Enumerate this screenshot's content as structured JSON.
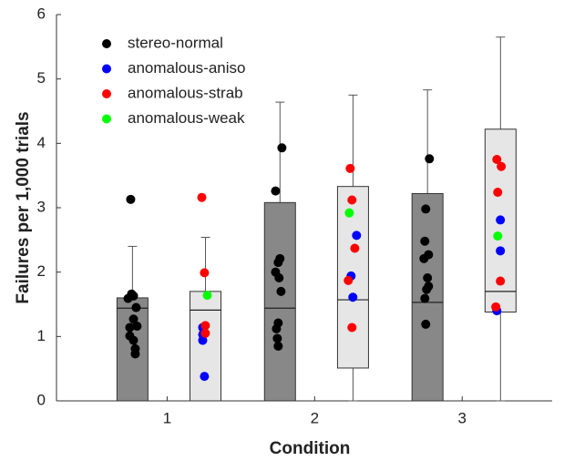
{
  "chart_data": {
    "type": "box-scatter",
    "xlabel": "Condition",
    "ylabel": "Failures per 1,000 trials",
    "xlim": [
      0.25,
      3.61
    ],
    "xticks": [
      1,
      2,
      3
    ],
    "ylim": [
      0,
      6
    ],
    "yticks": [
      0,
      1,
      2,
      3,
      4,
      5,
      6
    ],
    "legend": "upper-left",
    "boxes": [
      {
        "x": 0.765,
        "low": 0,
        "q1": 0,
        "median": 1.44,
        "q3": 1.6,
        "high": 2.4,
        "color": "#888888"
      },
      {
        "x": 1.26,
        "low": 0,
        "q1": 0,
        "median": 1.41,
        "q3": 1.7,
        "high": 2.54,
        "color": "#e6e6e6"
      },
      {
        "x": 1.765,
        "low": 0,
        "q1": 0,
        "median": 1.44,
        "q3": 3.08,
        "high": 4.64,
        "color": "#888888"
      },
      {
        "x": 2.26,
        "low": 0,
        "q1": 0.51,
        "median": 1.57,
        "q3": 3.33,
        "high": 4.75,
        "color": "#e6e6e6"
      },
      {
        "x": 2.765,
        "low": 0,
        "q1": 0,
        "median": 1.53,
        "q3": 3.22,
        "high": 4.83,
        "color": "#888888"
      },
      {
        "x": 3.26,
        "low": 0,
        "q1": 1.38,
        "median": 1.7,
        "q3": 4.22,
        "high": 5.65,
        "color": "#e6e6e6"
      }
    ],
    "series": [
      {
        "name": "stereo-normal",
        "color": "#000000",
        "x": [
          0.753,
          0.759,
          0.772,
          0.735,
          0.79,
          0.772,
          0.796,
          0.747,
          0.747,
          0.772,
          0.784,
          0.784,
          1.778,
          1.735,
          1.765,
          1.753,
          1.735,
          1.759,
          1.772,
          1.753,
          1.741,
          1.747,
          1.753,
          2.778,
          2.753,
          2.747,
          2.772,
          2.741,
          2.765,
          2.772,
          2.759,
          2.747,
          2.753
        ],
        "values": [
          3.13,
          1.66,
          1.63,
          1.59,
          1.45,
          1.27,
          1.16,
          1.14,
          1.01,
          0.94,
          0.81,
          0.73,
          3.93,
          3.26,
          2.21,
          2.15,
          2.0,
          1.91,
          1.7,
          1.21,
          1.12,
          0.97,
          0.85,
          3.76,
          2.98,
          2.48,
          2.27,
          2.21,
          1.91,
          1.78,
          1.73,
          1.59,
          1.19
        ]
      },
      {
        "name": "anomalous-aniso",
        "color": "#0000ff",
        "x": [
          1.241,
          1.241,
          1.241,
          1.253,
          2.284,
          2.247,
          2.259,
          3.259,
          3.259,
          3.235
        ],
        "values": [
          1.14,
          1.03,
          0.94,
          0.38,
          2.57,
          1.94,
          1.61,
          2.81,
          2.33,
          1.4
        ]
      },
      {
        "name": "anomalous-strab",
        "color": "#ff0000",
        "x": [
          1.235,
          1.253,
          1.259,
          1.259,
          2.241,
          2.253,
          2.272,
          2.228,
          2.253,
          3.235,
          3.265,
          3.241,
          3.259,
          3.228
        ],
        "values": [
          3.16,
          1.99,
          1.17,
          1.05,
          3.61,
          3.12,
          2.37,
          1.87,
          1.14,
          3.75,
          3.64,
          3.24,
          1.86,
          1.46
        ]
      },
      {
        "name": "anomalous-weak",
        "color": "#00ff00",
        "x": [
          1.272,
          2.235,
          3.241
        ],
        "values": [
          1.64,
          2.92,
          2.56
        ]
      }
    ]
  }
}
